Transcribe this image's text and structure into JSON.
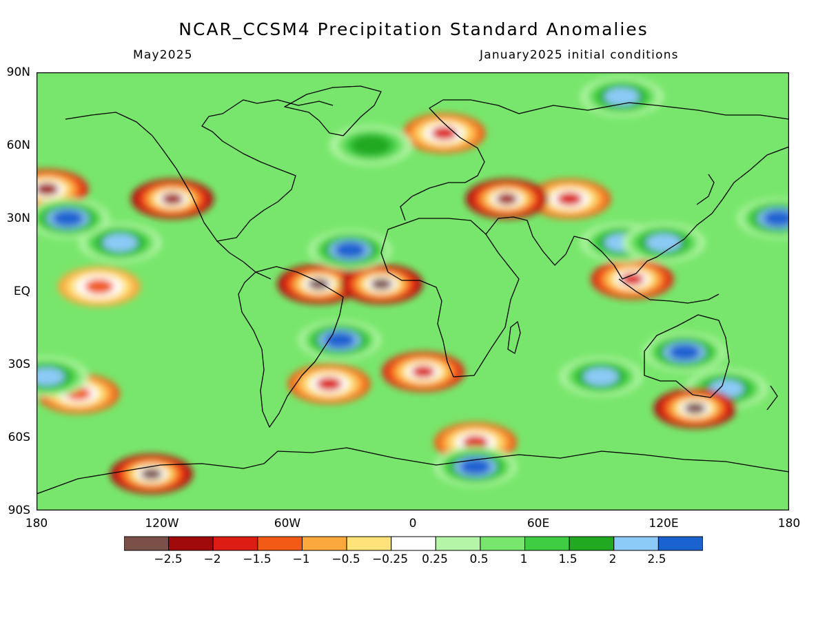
{
  "title": "NCAR_CCSM4 Precipitation Standard Anomalies",
  "subtitle_left": "May2025",
  "subtitle_right": "January2025 initial conditions",
  "lat_labels": [
    "90N",
    "60N",
    "30N",
    "EQ",
    "30S",
    "60S",
    "90S"
  ],
  "lon_labels": [
    "180",
    "120W",
    "60W",
    "0",
    "60E",
    "120E",
    "180"
  ],
  "colorbar": {
    "colors": [
      "#7a5048",
      "#a00a0a",
      "#dd1c14",
      "#f25a16",
      "#fba93c",
      "#fde27a",
      "#ffffff",
      "#b5f5a8",
      "#78e66c",
      "#3fcd44",
      "#21a921",
      "#8ccaf7",
      "#1a62d0"
    ],
    "labels": [
      "−2.5",
      "−2",
      "−1.5",
      "−1",
      "−0.5",
      "−0.25",
      "0.25",
      "0.5",
      "1",
      "1.5",
      "2",
      "2.5"
    ]
  },
  "chart_data": {
    "type": "heatmap",
    "variable": "Precipitation Standard Anomalies",
    "model": "NCAR_CCSM4",
    "target_month": "May2025",
    "initial_conditions": "January2025",
    "lon_range": [
      -180,
      180
    ],
    "lat_range": [
      -90,
      90
    ],
    "contour_levels": [
      -2.5,
      -2,
      -1.5,
      -1,
      -0.5,
      -0.25,
      0.25,
      0.5,
      1,
      1.5,
      2,
      2.5
    ],
    "notable_regions": [
      {
        "lon": 135,
        "lat": -48,
        "anomaly": -3.0
      },
      {
        "lon": -125,
        "lat": -75,
        "anomaly": -3.0
      },
      {
        "lon": -15,
        "lat": 3,
        "anomaly": -2.8
      },
      {
        "lon": -45,
        "lat": 3,
        "anomaly": -2.6
      },
      {
        "lon": 45,
        "lat": 38,
        "anomaly": -2.5
      },
      {
        "lon": -115,
        "lat": 38,
        "anomaly": -2.5
      },
      {
        "lon": -175,
        "lat": 42,
        "anomaly": -2.2
      },
      {
        "lon": 5,
        "lat": -33,
        "anomaly": -2.0
      },
      {
        "lon": 105,
        "lat": 5,
        "anomaly": -2.0
      },
      {
        "lon": 75,
        "lat": 38,
        "anomaly": -1.8
      },
      {
        "lon": 15,
        "lat": 65,
        "anomaly": -1.8
      },
      {
        "lon": -150,
        "lat": 2,
        "anomaly": -1.4
      },
      {
        "lon": -160,
        "lat": -42,
        "anomaly": -1.5
      },
      {
        "lon": -40,
        "lat": -38,
        "anomaly": -1.6
      },
      {
        "lon": 30,
        "lat": -62,
        "anomaly": -1.6
      },
      {
        "lon": -30,
        "lat": 17,
        "anomaly": 2.8
      },
      {
        "lon": -35,
        "lat": -20,
        "anomaly": 2.8
      },
      {
        "lon": 130,
        "lat": -25,
        "anomaly": 2.6
      },
      {
        "lon": -165,
        "lat": 30,
        "anomaly": 2.6
      },
      {
        "lon": 30,
        "lat": -72,
        "anomaly": 2.6
      },
      {
        "lon": -140,
        "lat": 20,
        "anomaly": 2.3
      },
      {
        "lon": 100,
        "lat": 20,
        "anomaly": 2.4
      },
      {
        "lon": 120,
        "lat": 20,
        "anomaly": 2.4
      },
      {
        "lon": 175,
        "lat": 30,
        "anomaly": 2.5
      },
      {
        "lon": -175,
        "lat": -35,
        "anomaly": 2.4
      },
      {
        "lon": 90,
        "lat": -35,
        "anomaly": 2.2
      },
      {
        "lon": 150,
        "lat": -40,
        "anomaly": 2.3
      },
      {
        "lon": 100,
        "lat": 80,
        "anomaly": 2.2
      },
      {
        "lon": -20,
        "lat": 60,
        "anomaly": 1.8
      }
    ]
  }
}
